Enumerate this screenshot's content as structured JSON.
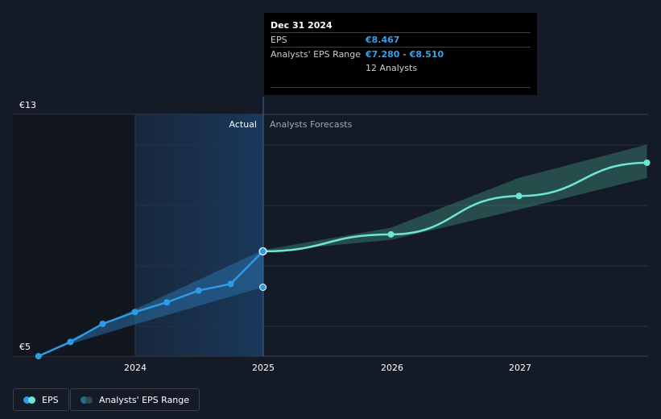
{
  "chart_data": {
    "type": "line",
    "currency_prefix": "€",
    "y_axis": {
      "min": 5,
      "max": 13,
      "tick_labels": [
        "€13",
        "€5"
      ]
    },
    "x_axis": {
      "tick_labels": [
        "2024",
        "2025",
        "2026",
        "2027"
      ]
    },
    "regions": {
      "actual_label": "Actual",
      "forecast_label": "Analysts Forecasts"
    },
    "series": [
      {
        "name": "EPS",
        "color": "#2e9be6",
        "points": [
          [
            "2023-03-31",
            5.0
          ],
          [
            "2023-06-30",
            5.47
          ],
          [
            "2023-09-30",
            6.07
          ],
          [
            "2023-12-31",
            6.46
          ],
          [
            "2024-03-31",
            6.78
          ],
          [
            "2024-06-30",
            7.17
          ],
          [
            "2024-09-30",
            7.39
          ],
          [
            "2024-12-31",
            8.47
          ]
        ]
      },
      {
        "name": "EPS Forecast",
        "color": "#6ee6d6",
        "points": [
          [
            "2024-12-31",
            8.47
          ],
          [
            "2025-12-31",
            9.03
          ],
          [
            "2026-12-31",
            10.3
          ],
          [
            "2027-12-31",
            11.4
          ]
        ]
      }
    ],
    "range": {
      "name": "Analysts' EPS Range",
      "past": [
        [
          "2023-06-30",
          5.4,
          5.55
        ],
        [
          "2023-12-31",
          6.05,
          6.55
        ],
        [
          "2024-12-31",
          7.28,
          8.51
        ]
      ],
      "forecast": [
        [
          "2024-12-31",
          8.45,
          8.51
        ],
        [
          "2025-12-31",
          8.85,
          9.25
        ],
        [
          "2026-12-31",
          9.85,
          10.9
        ],
        [
          "2027-12-31",
          10.9,
          12.0
        ]
      ]
    },
    "highlighted_date": "2024-12-31"
  },
  "tooltip": {
    "date": "Dec 31 2024",
    "eps_label": "EPS",
    "eps_value": "€8.467",
    "range_label": "Analysts' EPS Range",
    "range_value": "€7.280 - €8.510",
    "analysts": "12 Analysts"
  },
  "legend": {
    "eps": "EPS",
    "range": "Analysts' EPS Range",
    "colors": {
      "eps_dot": "#2e9be6",
      "eps_dot2": "#6ee6d6",
      "range_dot": "#2c6a8a",
      "range_dot2": "#2b4a55"
    }
  }
}
